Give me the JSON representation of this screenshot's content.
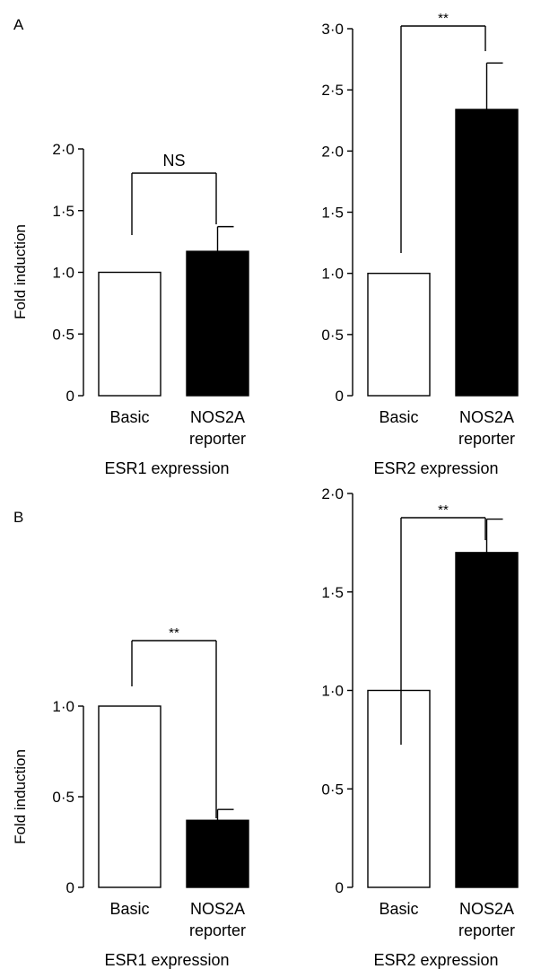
{
  "figure": {
    "panel_labels": [
      "A",
      "B"
    ]
  },
  "colors": {
    "ink": "#000000",
    "basic_fill": "#ffffff",
    "reporter_fill": "#000000"
  },
  "chart_data": [
    {
      "type": "bar",
      "panel": "A",
      "categories": [
        "Basic",
        "NOS2A reporter"
      ],
      "category_lines": [
        [
          "Basic"
        ],
        [
          "NOS2A",
          "reporter"
        ]
      ],
      "values": [
        1.0,
        1.17
      ],
      "errors": [
        0,
        0.2
      ],
      "ylabel": "Fold induction",
      "xlabel": "ESR1 expression",
      "ylim": [
        0,
        2.0
      ],
      "yticks": [
        0,
        0.5,
        1.0,
        1.5,
        2.0
      ],
      "ytick_labels": [
        "0",
        "0·5",
        "1·0",
        "1·5",
        "2·0"
      ],
      "significance": "NS"
    },
    {
      "type": "bar",
      "panel": "A",
      "categories": [
        "Basic",
        "NOS2A reporter"
      ],
      "category_lines": [
        [
          "Basic"
        ],
        [
          "NOS2A",
          "reporter"
        ]
      ],
      "values": [
        1.0,
        2.34
      ],
      "errors": [
        0,
        0.38
      ],
      "ylabel": "",
      "xlabel": "ESR2 expression",
      "ylim": [
        0,
        3.0
      ],
      "yticks": [
        0,
        0.5,
        1.0,
        1.5,
        2.0,
        2.5,
        3.0
      ],
      "ytick_labels": [
        "0",
        "0·5",
        "1·0",
        "1·5",
        "2·0",
        "2·5",
        "3·0"
      ],
      "significance": "**"
    },
    {
      "type": "bar",
      "panel": "B",
      "categories": [
        "Basic",
        "NOS2A reporter"
      ],
      "category_lines": [
        [
          "Basic"
        ],
        [
          "NOS2A",
          "reporter"
        ]
      ],
      "values": [
        1.0,
        0.37
      ],
      "errors": [
        0,
        0.06
      ],
      "ylabel": "Fold induction",
      "xlabel": "ESR1 expression",
      "ylim": [
        0,
        1.0
      ],
      "yticks": [
        0,
        0.5,
        1.0
      ],
      "ytick_labels": [
        "0",
        "0·5",
        "1·0"
      ],
      "significance": "**"
    },
    {
      "type": "bar",
      "panel": "B",
      "categories": [
        "Basic",
        "NOS2A reporter"
      ],
      "category_lines": [
        [
          "Basic"
        ],
        [
          "NOS2A",
          "reporter"
        ]
      ],
      "values": [
        1.0,
        1.7
      ],
      "errors": [
        0,
        0.17
      ],
      "ylabel": "",
      "xlabel": "ESR2 expression",
      "ylim": [
        0,
        2.0
      ],
      "yticks": [
        0,
        0.5,
        1.0,
        1.5,
        2.0
      ],
      "ytick_labels": [
        "0",
        "0·5",
        "1·0",
        "1·5",
        "2·0"
      ],
      "significance": "**"
    }
  ]
}
